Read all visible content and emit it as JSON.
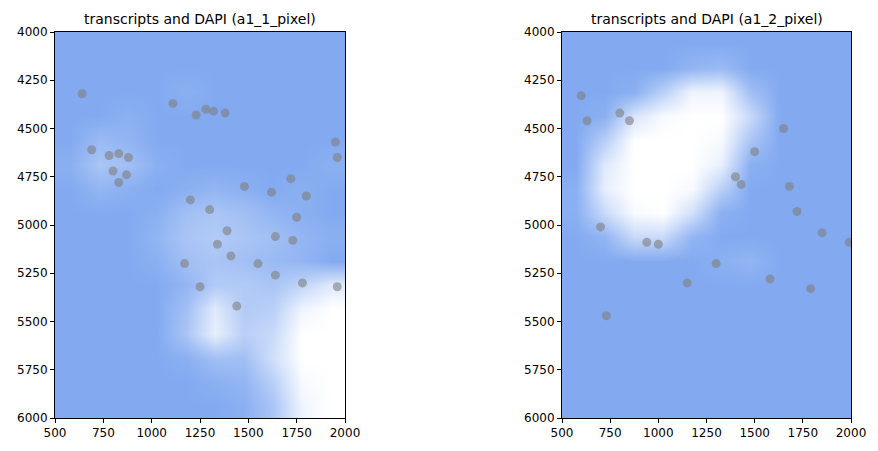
{
  "chart_data": [
    {
      "type": "heatmap",
      "title": "transcripts and DAPI (a1_1_pixel)",
      "xlim": [
        500,
        2000
      ],
      "xticks": [
        500,
        750,
        1000,
        1250,
        1500,
        1750,
        2000
      ],
      "ylim": [
        6000,
        4000
      ],
      "yticks": [
        4000,
        4250,
        4500,
        4750,
        5000,
        5250,
        5500,
        5750,
        6000
      ],
      "series": [
        {
          "type": "heatmap",
          "color": "#6495ed",
          "zlim": [
            0,
            1
          ],
          "x": [
            575,
            725,
            875,
            1025,
            1175,
            1325,
            1475,
            1625,
            1775,
            1925
          ],
          "y": [
            4062.5,
            4187.5,
            4312.5,
            4437.5,
            4562.5,
            4687.5,
            4812.5,
            4937.5,
            5062.5,
            5187.5,
            5312.5,
            5437.5,
            5562.5,
            5687.5,
            5812.5,
            5937.5
          ],
          "z": [
            [
              0.8,
              0.8,
              0.8,
              0.8,
              0.8,
              0.8,
              0.8,
              0.8,
              0.8,
              0.8
            ],
            [
              0.8,
              0.8,
              0.8,
              0.8,
              0.8,
              0.8,
              0.8,
              0.8,
              0.8,
              0.8
            ],
            [
              0.8,
              0.8,
              0.8,
              0.8,
              0.75,
              0.8,
              0.8,
              0.8,
              0.8,
              0.8
            ],
            [
              0.8,
              0.8,
              0.75,
              0.8,
              0.8,
              0.8,
              0.8,
              0.8,
              0.8,
              0.8
            ],
            [
              0.8,
              0.65,
              0.7,
              0.8,
              0.8,
              0.8,
              0.8,
              0.8,
              0.8,
              0.8
            ],
            [
              0.75,
              0.55,
              0.6,
              0.75,
              0.8,
              0.8,
              0.8,
              0.8,
              0.8,
              0.75
            ],
            [
              0.8,
              0.7,
              0.75,
              0.8,
              0.75,
              0.7,
              0.75,
              0.8,
              0.75,
              0.8
            ],
            [
              0.8,
              0.8,
              0.8,
              0.75,
              0.6,
              0.55,
              0.6,
              0.7,
              0.75,
              0.8
            ],
            [
              0.8,
              0.8,
              0.8,
              0.7,
              0.55,
              0.5,
              0.55,
              0.6,
              0.7,
              0.75
            ],
            [
              0.8,
              0.8,
              0.8,
              0.75,
              0.6,
              0.55,
              0.6,
              0.65,
              0.7,
              0.8
            ],
            [
              0.8,
              0.8,
              0.8,
              0.8,
              0.7,
              0.5,
              0.5,
              0.55,
              0.4,
              0.2
            ],
            [
              0.8,
              0.8,
              0.8,
              0.8,
              0.6,
              0.2,
              0.5,
              0.45,
              0.1,
              0.0
            ],
            [
              0.8,
              0.8,
              0.8,
              0.8,
              0.55,
              0.15,
              0.45,
              0.35,
              0.0,
              0.0
            ],
            [
              0.8,
              0.8,
              0.8,
              0.8,
              0.75,
              0.6,
              0.6,
              0.3,
              0.0,
              0.0
            ],
            [
              0.8,
              0.8,
              0.8,
              0.8,
              0.8,
              0.75,
              0.7,
              0.45,
              0.05,
              0.0
            ],
            [
              0.8,
              0.8,
              0.8,
              0.8,
              0.8,
              0.8,
              0.75,
              0.55,
              0.1,
              0.0
            ]
          ]
        },
        {
          "type": "scatter",
          "color": "#7f7f7f",
          "marker": "circle",
          "x": [
            1110,
            1280,
            1320,
            1380,
            1230,
            690,
            780,
            830,
            880,
            800,
            870,
            830,
            640,
            1950,
            1960,
            1480,
            1620,
            1800,
            1720,
            1300,
            1390,
            1640,
            1730,
            1340,
            1410,
            1170,
            1550,
            1640,
            1780,
            1960,
            1250,
            1440,
            1750,
            1200
          ],
          "y": [
            4370,
            4400,
            4410,
            4420,
            4430,
            4610,
            4640,
            4630,
            4650,
            4720,
            4740,
            4780,
            4320,
            4570,
            4650,
            4800,
            4830,
            4850,
            4760,
            4920,
            5030,
            5060,
            5080,
            5100,
            5160,
            5200,
            5200,
            5260,
            5300,
            5320,
            5320,
            5420,
            4960,
            4870
          ]
        }
      ]
    },
    {
      "type": "heatmap",
      "title": "transcripts and DAPI (a1_2_pixel)",
      "xlim": [
        500,
        2000
      ],
      "xticks": [
        500,
        750,
        1000,
        1250,
        1500,
        1750,
        2000
      ],
      "ylim": [
        6000,
        4000
      ],
      "yticks": [
        4000,
        4250,
        4500,
        4750,
        5000,
        5250,
        5500,
        5750,
        6000
      ],
      "series": [
        {
          "type": "heatmap",
          "color": "#6495ed",
          "zlim": [
            0,
            1
          ],
          "x": [
            575,
            725,
            875,
            1025,
            1175,
            1325,
            1475,
            1625,
            1775,
            1925
          ],
          "y": [
            4062.5,
            4187.5,
            4312.5,
            4437.5,
            4562.5,
            4687.5,
            4812.5,
            4937.5,
            5062.5,
            5187.5,
            5312.5,
            5437.5,
            5562.5,
            5687.5,
            5812.5,
            5937.5
          ],
          "z": [
            [
              0.8,
              0.8,
              0.8,
              0.8,
              0.8,
              0.8,
              0.8,
              0.8,
              0.8,
              0.8
            ],
            [
              0.8,
              0.8,
              0.8,
              0.8,
              0.7,
              0.65,
              0.8,
              0.8,
              0.8,
              0.8
            ],
            [
              0.8,
              0.8,
              0.75,
              0.45,
              0.1,
              0.1,
              0.6,
              0.8,
              0.8,
              0.8
            ],
            [
              0.8,
              0.75,
              0.25,
              0.05,
              0.0,
              0.0,
              0.35,
              0.8,
              0.8,
              0.8
            ],
            [
              0.8,
              0.45,
              0.0,
              0.0,
              0.0,
              0.05,
              0.55,
              0.8,
              0.8,
              0.8
            ],
            [
              0.8,
              0.2,
              0.0,
              0.0,
              0.0,
              0.15,
              0.75,
              0.8,
              0.8,
              0.8
            ],
            [
              0.75,
              0.15,
              0.0,
              0.0,
              0.05,
              0.45,
              0.8,
              0.8,
              0.8,
              0.8
            ],
            [
              0.75,
              0.35,
              0.05,
              0.0,
              0.3,
              0.75,
              0.8,
              0.8,
              0.8,
              0.8
            ],
            [
              0.8,
              0.7,
              0.35,
              0.35,
              0.7,
              0.8,
              0.8,
              0.8,
              0.8,
              0.8
            ],
            [
              0.8,
              0.8,
              0.8,
              0.8,
              0.8,
              0.75,
              0.7,
              0.8,
              0.8,
              0.8
            ],
            [
              0.8,
              0.8,
              0.8,
              0.8,
              0.8,
              0.8,
              0.8,
              0.8,
              0.8,
              0.8
            ],
            [
              0.8,
              0.8,
              0.8,
              0.8,
              0.8,
              0.8,
              0.8,
              0.8,
              0.8,
              0.8
            ],
            [
              0.8,
              0.8,
              0.8,
              0.8,
              0.8,
              0.8,
              0.8,
              0.8,
              0.8,
              0.8
            ],
            [
              0.8,
              0.8,
              0.8,
              0.8,
              0.8,
              0.8,
              0.8,
              0.8,
              0.8,
              0.8
            ],
            [
              0.8,
              0.8,
              0.8,
              0.8,
              0.8,
              0.8,
              0.8,
              0.8,
              0.8,
              0.8
            ],
            [
              0.8,
              0.8,
              0.8,
              0.8,
              0.8,
              0.8,
              0.8,
              0.8,
              0.8,
              0.8
            ]
          ]
        },
        {
          "type": "scatter",
          "color": "#7f7f7f",
          "marker": "circle",
          "x": [
            600,
            800,
            850,
            630,
            1000,
            940,
            1150,
            1300,
            1500,
            1650,
            1430,
            1400,
            1680,
            1720,
            1990,
            1580,
            1850,
            730,
            700,
            1790
          ],
          "y": [
            4330,
            4420,
            4460,
            4460,
            5100,
            5090,
            5300,
            5200,
            4620,
            4500,
            4790,
            4750,
            4800,
            4930,
            5090,
            5280,
            5040,
            5470,
            5010,
            5330
          ]
        }
      ]
    }
  ]
}
